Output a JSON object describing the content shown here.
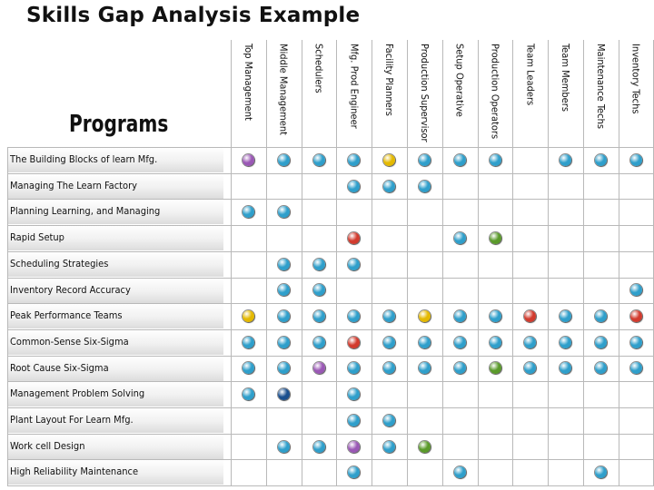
{
  "title": "Skills Gap Analysis Example",
  "programs_header": "Programs",
  "colors": {
    "blue": "#2f9fcb",
    "purple": "#9a58b5",
    "yellow": "#e4b900",
    "red": "#d23b2e",
    "green": "#5a9a2a",
    "navy": "#1a4f8e"
  },
  "columns": [
    "Top Management",
    "Middle Management",
    "Schedulers",
    "Mfg. Prod Engineer",
    "Facility Planners",
    "Production Supervisor",
    "Setup Operative",
    "Production Operators",
    "Team Leaders",
    "Team Members",
    "Maintenance Techs",
    "Inventory Techs"
  ],
  "rows": [
    {
      "label": "The Building Blocks of learn Mfg.",
      "cells": [
        "purple",
        "blue",
        "blue",
        "blue",
        "yellow",
        "blue",
        "blue",
        "blue",
        "",
        "blue",
        "blue",
        "blue"
      ]
    },
    {
      "label": "Managing The Learn Factory",
      "cells": [
        "",
        "",
        "",
        "blue",
        "blue",
        "blue",
        "",
        "",
        "",
        "",
        "",
        ""
      ]
    },
    {
      "label": "Planning Learning, and Managing",
      "cells": [
        "blue",
        "blue",
        "",
        "",
        "",
        "",
        "",
        "",
        "",
        "",
        "",
        ""
      ]
    },
    {
      "label": "Rapid Setup",
      "cells": [
        "",
        "",
        "",
        "red",
        "",
        "",
        "blue",
        "green",
        "",
        "",
        "",
        ""
      ]
    },
    {
      "label": "Scheduling Strategies",
      "cells": [
        "",
        "blue",
        "blue",
        "blue",
        "",
        "",
        "",
        "",
        "",
        "",
        "",
        ""
      ]
    },
    {
      "label": "Inventory Record Accuracy",
      "cells": [
        "",
        "blue",
        "blue",
        "",
        "",
        "",
        "",
        "",
        "",
        "",
        "",
        "blue"
      ]
    },
    {
      "label": "Peak Performance Teams",
      "cells": [
        "yellow",
        "blue",
        "blue",
        "blue",
        "blue",
        "yellow",
        "blue",
        "blue",
        "red",
        "blue",
        "blue",
        "red"
      ]
    },
    {
      "label": "Common-Sense Six-Sigma",
      "cells": [
        "blue",
        "blue",
        "blue",
        "red",
        "blue",
        "blue",
        "blue",
        "blue",
        "blue",
        "blue",
        "blue",
        "blue"
      ]
    },
    {
      "label": "Root Cause Six-Sigma",
      "cells": [
        "blue",
        "blue",
        "purple",
        "blue",
        "blue",
        "blue",
        "blue",
        "green",
        "blue",
        "blue",
        "blue",
        "blue"
      ]
    },
    {
      "label": "Management Problem Solving",
      "cells": [
        "blue",
        "navy",
        "",
        "blue",
        "",
        "",
        "",
        "",
        "",
        "",
        "",
        ""
      ]
    },
    {
      "label": "Plant Layout For Learn Mfg.",
      "cells": [
        "",
        "",
        "",
        "blue",
        "blue",
        "",
        "",
        "",
        "",
        "",
        "",
        ""
      ]
    },
    {
      "label": "Work cell Design",
      "cells": [
        "",
        "blue",
        "blue",
        "purple",
        "blue",
        "green",
        "",
        "",
        "",
        "",
        "",
        ""
      ]
    },
    {
      "label": "High Reliability Maintenance",
      "cells": [
        "",
        "",
        "",
        "blue",
        "",
        "",
        "blue",
        "",
        "",
        "",
        "blue",
        ""
      ]
    }
  ]
}
